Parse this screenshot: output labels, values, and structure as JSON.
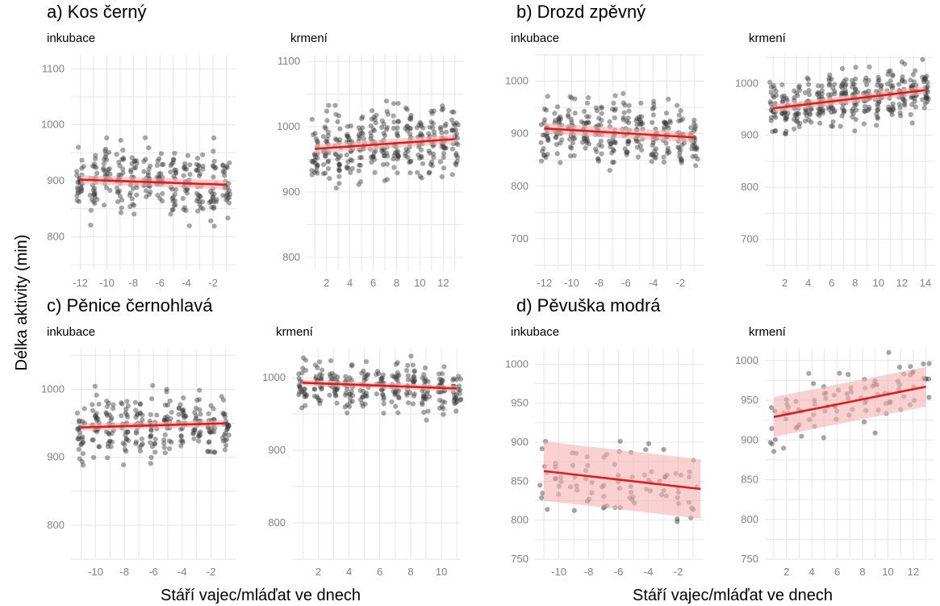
{
  "figure": {
    "y_axis_label": "Délka aktivity (min)",
    "x_axis_label": "Stáří vajec/mláďat ve dnech",
    "colors": {
      "points": "#3a3a3a",
      "trend": "#e11b1b",
      "ci_band": "#f5b3b3",
      "grid": "#e6e6e6"
    }
  },
  "chart_data": [
    {
      "panel": "a",
      "title": "a) Kos černý",
      "subtitle": "inkubace",
      "type": "scatter",
      "xlim": [
        -12.7,
        -0.3
      ],
      "ylim": [
        740,
        1125
      ],
      "xticks": [
        -12,
        -10,
        -8,
        -6,
        -4,
        -2
      ],
      "yticks": [
        800,
        900,
        1000,
        1100
      ],
      "x": [
        -12,
        -11,
        -10,
        -9,
        -8,
        -7,
        -6,
        -5,
        -4,
        -3,
        -2,
        -1
      ],
      "y_center": 900,
      "y_spread": 55,
      "seed": 11,
      "trend": {
        "x": [
          -12,
          -1
        ],
        "y": [
          902,
          893
        ]
      },
      "ci": 8
    },
    {
      "panel": "a",
      "title": "",
      "subtitle": "krmení",
      "type": "scatter",
      "xlim": [
        0.3,
        13.7
      ],
      "ylim": [
        780,
        1110
      ],
      "xticks": [
        2,
        4,
        6,
        8,
        10,
        12
      ],
      "yticks": [
        800,
        900,
        1000,
        1100
      ],
      "x": [
        1,
        2,
        3,
        4,
        5,
        6,
        7,
        8,
        9,
        10,
        11,
        12,
        13
      ],
      "y_center": 972,
      "y_spread": 50,
      "seed": 23,
      "trend": {
        "x": [
          1,
          13
        ],
        "y": [
          966,
          981
        ]
      },
      "ci": 7
    },
    {
      "panel": "b",
      "title": "b) Drozd zpěvný",
      "subtitle": "inkubace",
      "type": "scatter",
      "xlim": [
        -12.7,
        -0.3
      ],
      "ylim": [
        640,
        1050
      ],
      "xticks": [
        -12,
        -10,
        -8,
        -6,
        -4,
        -2
      ],
      "yticks": [
        700,
        800,
        900,
        1000
      ],
      "x": [
        -12,
        -11,
        -10,
        -9,
        -8,
        -7,
        -6,
        -5,
        -4,
        -3,
        -2,
        -1
      ],
      "y_center": 900,
      "y_spread": 55,
      "seed": 37,
      "trend": {
        "x": [
          -12,
          -1
        ],
        "y": [
          910,
          893
        ]
      },
      "ci": 10
    },
    {
      "panel": "b",
      "title": "",
      "subtitle": "krmení",
      "type": "scatter",
      "xlim": [
        0.3,
        14.7
      ],
      "ylim": [
        640,
        1055
      ],
      "xticks": [
        2,
        4,
        6,
        8,
        10,
        12,
        14
      ],
      "yticks": [
        700,
        800,
        900,
        1000
      ],
      "x": [
        1,
        2,
        3,
        4,
        5,
        6,
        7,
        8,
        9,
        10,
        11,
        12,
        13,
        14
      ],
      "y_center": 968,
      "y_spread": 45,
      "seed": 41,
      "trend": {
        "x": [
          1,
          14
        ],
        "y": [
          952,
          987
        ]
      },
      "ci": 8
    },
    {
      "panel": "c",
      "title": "c) Pěnice černohlavá",
      "subtitle": "inkubace",
      "type": "scatter",
      "xlim": [
        -11.7,
        -0.3
      ],
      "ylim": [
        750,
        1060
      ],
      "xticks": [
        -10,
        -8,
        -6,
        -4,
        -2
      ],
      "yticks": [
        800,
        900,
        1000
      ],
      "x": [
        -11,
        -10,
        -9,
        -8,
        -7,
        -6,
        -5,
        -4,
        -3,
        -2,
        -1
      ],
      "y_center": 946,
      "y_spread": 45,
      "seed": 53,
      "trend": {
        "x": [
          -11,
          -1
        ],
        "y": [
          944,
          950
        ]
      },
      "ci": 5
    },
    {
      "panel": "c",
      "title": "",
      "subtitle": "krmení",
      "type": "scatter",
      "xlim": [
        0.3,
        11.2
      ],
      "ylim": [
        750,
        1040
      ],
      "xticks": [
        2,
        4,
        6,
        8,
        10
      ],
      "yticks": [
        800,
        900,
        1000
      ],
      "x": [
        1,
        2,
        3,
        4,
        5,
        6,
        7,
        8,
        9,
        10,
        11
      ],
      "y_center": 988,
      "y_spread": 30,
      "seed": 67,
      "trend": {
        "x": [
          1,
          11
        ],
        "y": [
          993,
          985
        ]
      },
      "ci": 4
    },
    {
      "panel": "d",
      "title": "d) Pěvuška modrá",
      "subtitle": "inkubace",
      "type": "scatter",
      "xlim": [
        -11.6,
        -0.3
      ],
      "ylim": [
        750,
        1020
      ],
      "xticks": [
        -10,
        -8,
        -6,
        -4,
        -2
      ],
      "yticks": [
        750,
        800,
        850,
        900,
        950,
        1000
      ],
      "x": [
        -11,
        -10,
        -9,
        -8,
        -7,
        -6,
        -5,
        -4,
        -3,
        -2,
        -1
      ],
      "y_center": 852,
      "y_spread": 45,
      "seed": 79,
      "n_per_x": 8,
      "trend": {
        "x": [
          -11,
          -0.5
        ],
        "y": [
          863,
          840
        ]
      },
      "ci": 38
    },
    {
      "panel": "d",
      "title": "",
      "subtitle": "krmení",
      "type": "scatter",
      "xlim": [
        0.3,
        13.6
      ],
      "ylim": [
        750,
        1015
      ],
      "xticks": [
        2,
        4,
        6,
        8,
        10,
        12
      ],
      "yticks": [
        750,
        800,
        850,
        900,
        950,
        1000
      ],
      "x": [
        1,
        2,
        3,
        4,
        5,
        6,
        7,
        8,
        9,
        10,
        11,
        12,
        13
      ],
      "y_center": 945,
      "y_spread": 35,
      "seed": 97,
      "n_per_x": 7,
      "trend": {
        "x": [
          1,
          13
        ],
        "y": [
          929,
          967
        ]
      },
      "ci": 25
    }
  ]
}
